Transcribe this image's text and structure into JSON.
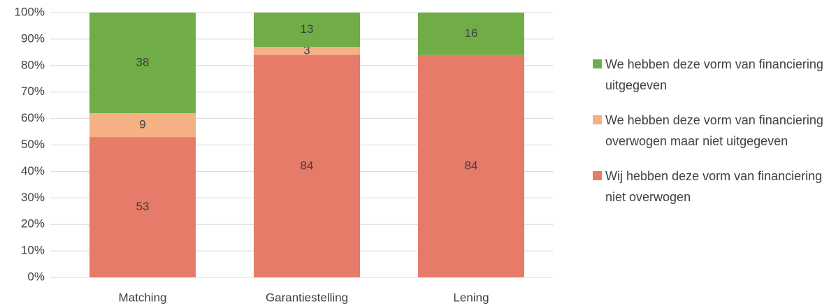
{
  "chart_data": {
    "type": "stacked_bar",
    "categories": [
      "Matching",
      "Garantiestelling",
      "Lening"
    ],
    "series": [
      {
        "name": "Wij hebben deze vorm van financiering niet overwogen",
        "color": "#e57b68",
        "values": [
          53,
          84,
          84
        ]
      },
      {
        "name": "We hebben deze vorm van financiering overwogen maar niet uitgegeven",
        "color": "#f4b183",
        "values": [
          9,
          3,
          null
        ]
      },
      {
        "name": "We hebben deze vorm van financiering uitgegeven",
        "color": "#70ad47",
        "values": [
          38,
          13,
          16
        ]
      }
    ],
    "ylim": [
      0,
      100
    ],
    "yticks": [
      {
        "value": 0,
        "label": "0%"
      },
      {
        "value": 10,
        "label": "10%"
      },
      {
        "value": 20,
        "label": "20%"
      },
      {
        "value": 30,
        "label": "30%"
      },
      {
        "value": 40,
        "label": "40%"
      },
      {
        "value": 50,
        "label": "50%"
      },
      {
        "value": 60,
        "label": "60%"
      },
      {
        "value": 70,
        "label": "70%"
      },
      {
        "value": 80,
        "label": "80%"
      },
      {
        "value": 90,
        "label": "90%"
      },
      {
        "value": 100,
        "label": "100%"
      }
    ],
    "grid": true,
    "legend": "right"
  }
}
